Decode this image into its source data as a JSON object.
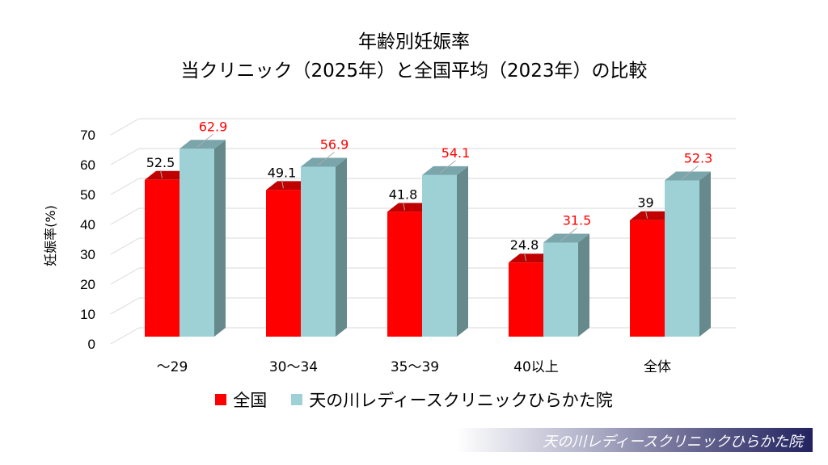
{
  "chart_data": {
    "type": "bar",
    "title": "年齢別妊娠率",
    "subtitle": "当クリニック（2025年）と全国平均（2023年）の比較",
    "xlabel": "",
    "ylabel": "妊娠率(%)",
    "ylim": [
      0,
      70
    ],
    "yticks": [
      0,
      10,
      20,
      30,
      40,
      50,
      60,
      70
    ],
    "categories": [
      "～29",
      "30～34",
      "35～39",
      "40以上",
      "全体"
    ],
    "series": [
      {
        "name": "全国",
        "values": [
          52.5,
          49.1,
          41.8,
          24.8,
          39
        ],
        "color": "#ff0000",
        "label_color": "#000000"
      },
      {
        "name": "天の川レディースクリニックひらかた院",
        "values": [
          62.9,
          56.9,
          54.1,
          31.5,
          52.3
        ],
        "color": "#9dd1d6",
        "label_color": "#ff0000"
      }
    ],
    "grid": true,
    "legend_position": "bottom"
  },
  "banner": {
    "text": "天の川レディースクリニックひらかた院"
  }
}
